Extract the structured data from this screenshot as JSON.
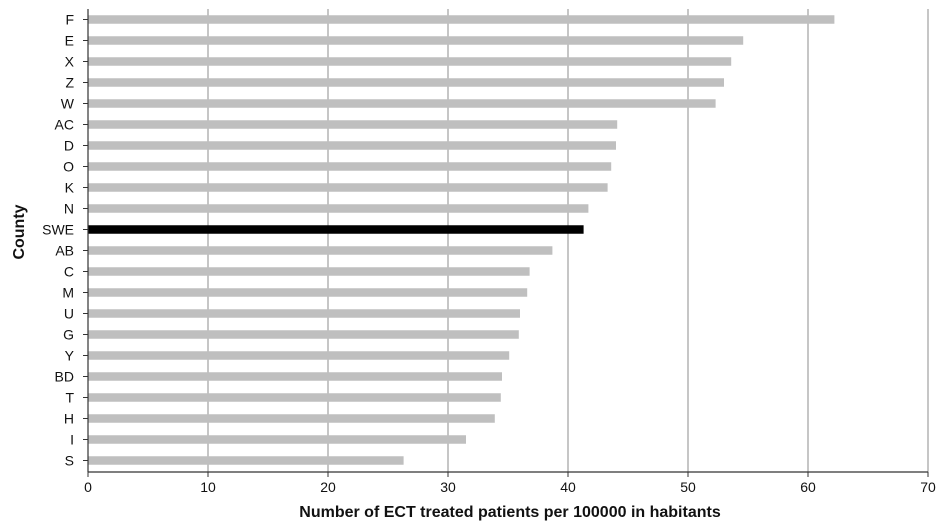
{
  "chart_data": {
    "type": "bar",
    "orientation": "horizontal",
    "xlabel": "Number of ECT treated patients per 100000 in habitants",
    "ylabel": "County",
    "xlim": [
      0,
      70
    ],
    "xticks": [
      0,
      10,
      20,
      30,
      40,
      50,
      60,
      70
    ],
    "grid": "vertical",
    "colors": {
      "bar": "#bfbfbf",
      "highlight": "#000000",
      "grid": "#8c8c8c",
      "axis": "#333333"
    },
    "highlight_category": "SWE",
    "categories": [
      "F",
      "E",
      "X",
      "Z",
      "W",
      "AC",
      "D",
      "O",
      "K",
      "N",
      "SWE",
      "AB",
      "C",
      "M",
      "U",
      "G",
      "Y",
      "BD",
      "T",
      "H",
      "I",
      "S"
    ],
    "values": [
      62.2,
      54.6,
      53.6,
      53.0,
      52.3,
      44.1,
      44.0,
      43.6,
      43.3,
      41.7,
      41.3,
      38.7,
      36.8,
      36.6,
      36.0,
      35.9,
      35.1,
      34.5,
      34.4,
      33.9,
      31.5,
      26.3
    ]
  }
}
